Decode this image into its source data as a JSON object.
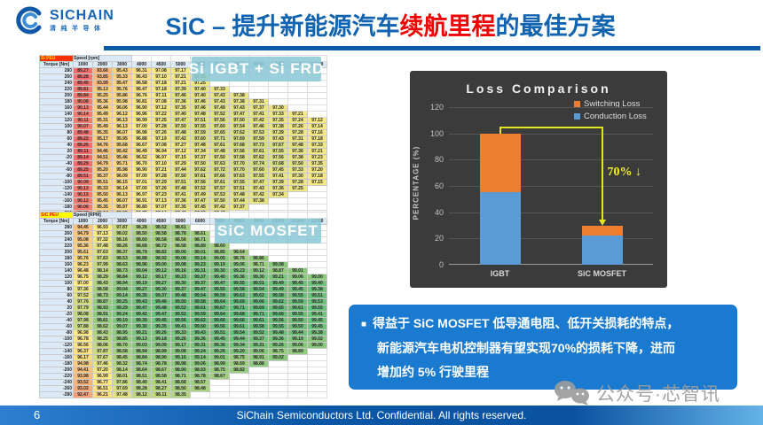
{
  "header": {
    "logo": {
      "brand": "SICHAIN",
      "brand_cn": "清纯半导体"
    },
    "title": {
      "prefix": "SiC – 提升新能源汽车",
      "highlight": "续航里程",
      "suffix": "的最佳方案"
    }
  },
  "tables": [
    {
      "corner_label": "Si PEU",
      "corner_style": "red",
      "speed_header": "Speed [rpm]",
      "torque_header": "Torque [Nm]",
      "overlay_label": "Si IGBT + Si FRD",
      "speeds": [
        "1000",
        "2000",
        "3000",
        "4000",
        "4500",
        "5000",
        "6000",
        "7000",
        "8000",
        "9000",
        "10000",
        "11000",
        "12000"
      ],
      "rows": [
        {
          "t": "280",
          "v": "89.27 93.66 95.43 96.31 97.08 97.17"
        },
        {
          "t": "260",
          "v": "89.28 93.85 95.33 96.43 97.10 97.21 97.25"
        },
        {
          "t": "240",
          "v": "89.45 93.99 95.47 96.58 97.18 97.21 97.25"
        },
        {
          "t": "220",
          "v": "89.81 95.13 95.76 96.47 97.18 97.39 97.40 97.33"
        },
        {
          "t": "200",
          "v": "89.84 95.25 95.86 96.76 97.11 97.46 97.40 97.43 97.38"
        },
        {
          "t": "180",
          "v": "90.08 95.36 95.98 96.81 97.08 97.36 97.46 97.43 97.38 97.31"
        },
        {
          "t": "160",
          "v": "90.13 95.44 96.06 96.90 97.12 97.35 97.46 97.49 97.43 97.37 97.30"
        },
        {
          "t": "140",
          "v": "90.14 95.49 96.12 96.96 97.22 97.40 97.48 97.52 97.47 97.41 97.33 97.21"
        },
        {
          "t": "120",
          "v": "90.11 95.31 96.13 96.99 97.25 97.47 97.51 97.56 97.50 97.42 97.35 97.24 97.12"
        },
        {
          "t": "100",
          "v": "90.07 95.49 96.13 97.00 97.28 97.50 97.55 97.60 97.54 97.46 97.38 97.26 97.14"
        },
        {
          "t": "80",
          "v": "89.48 95.35 96.07 96.98 97.26 97.48 97.59 97.65 97.62 97.53 97.39 97.28 97.16"
        },
        {
          "t": "60",
          "v": "89.22 95.17 95.95 96.88 97.19 97.42 97.60 97.71 97.69 97.59 97.43 97.31 97.18"
        },
        {
          "t": "40",
          "v": "89.26 94.76 95.68 96.67 97.08 97.27 97.48 97.61 97.68 97.73 97.67 97.48 97.33"
        },
        {
          "t": "20",
          "v": "89.11 94.46 95.42 96.49 96.94 97.12 97.34 97.48 97.56 97.61 97.55 97.36 97.21"
        },
        {
          "t": "-20",
          "v": "89.14 94.51 95.46 96.52 96.97 97.15 97.37 97.50 97.58 97.62 97.56 97.38 97.23"
        },
        {
          "t": "-40",
          "v": "89.29 94.79 95.71 96.70 97.10 97.29 97.50 97.63 97.70 97.74 97.68 97.50 97.35"
        },
        {
          "t": "-60",
          "v": "89.25 95.20 95.98 96.90 97.21 97.44 97.62 97.72 97.70 97.60 97.45 97.33 97.20"
        },
        {
          "t": "-80",
          "v": "89.51 95.37 96.09 97.00 97.28 97.50 97.61 97.66 97.63 97.55 97.41 97.30 97.18"
        },
        {
          "t": "-100",
          "v": "90.09 95.51 96.15 97.01 97.29 97.51 97.56 97.61 97.55 97.47 97.39 97.28 97.15"
        },
        {
          "t": "-120",
          "v": "90.13 95.33 96.14 97.00 97.26 97.48 97.52 97.57 97.51 97.43 97.36 97.25"
        },
        {
          "t": "-140",
          "v": "90.15 95.50 96.13 96.97 97.23 97.41 97.49 97.53 97.48 97.42 97.34"
        },
        {
          "t": "-160",
          "v": "90.12 95.45 96.07 96.91 97.13 97.36 97.47 97.50 97.44 97.38"
        },
        {
          "t": "-180",
          "v": "90.06 95.35 95.97 96.80 97.07 97.35 97.45 97.42 97.37"
        },
        {
          "t": "-200",
          "v": "89.82 95.24 95.85 96.75 97.10 97.45 97.39 97.42"
        },
        {
          "t": "-220",
          "v": "89.79 95.11 95.74 96.45 97.16 97.37 97.38"
        },
        {
          "t": "-240",
          "v": "89.43 93.97 95.45 96.56 97.16 97.19"
        }
      ]
    },
    {
      "corner_label": "SiC PEU",
      "corner_style": "yellow",
      "speed_header": "Speed [RPM]",
      "torque_header": "Torque [Nm]",
      "overlay_label": "SiC MOSFET",
      "speeds": [
        "1000",
        "2000",
        "3000",
        "4000",
        "4500",
        "5000",
        "6000",
        "7000",
        "8000",
        "9000",
        "10000",
        "11000",
        "12000"
      ],
      "rows": [
        {
          "t": "280",
          "v": "94.45 96.93 97.87 98.28 98.52 98.61"
        },
        {
          "t": "260",
          "v": "94.79 97.13 98.02 98.50 98.58 98.78 98.61"
        },
        {
          "t": "240",
          "v": "95.08 97.32 98.16 98.60 98.58 98.58 98.71"
        },
        {
          "t": "220",
          "v": "95.36 97.48 98.26 98.68 98.72 98.58 98.89 98.60"
        },
        {
          "t": "200",
          "v": "95.61 97.63 98.37 98.79 98.82 99.00 99.01 98.85 98.64"
        },
        {
          "t": "180",
          "v": "95.76 97.83 98.53 98.88 98.92 99.08 99.14 99.05 98.76 98.86"
        },
        {
          "t": "160",
          "v": "96.23 97.99 98.63 98.96 99.00 99.08 99.23 99.19 99.06 98.71 99.08"
        },
        {
          "t": "140",
          "v": "96.48 98.14 98.73 99.04 99.12 99.16 99.31 99.30 99.23 99.12 98.87 99.01"
        },
        {
          "t": "120",
          "v": "96.75 98.29 98.84 99.12 99.17 99.23 99.37 99.40 99.36 99.30 99.21 99.06 99.00"
        },
        {
          "t": "100",
          "v": "97.00 98.43 98.94 99.19 99.27 99.30 99.37 99.47 99.55 99.51 99.49 99.45 99.40"
        },
        {
          "t": "80",
          "v": "97.36 98.58 99.04 99.27 99.30 99.37 99.47 99.55 99.58 99.54 99.49 99.45 99.38"
        },
        {
          "t": "60",
          "v": "97.52 98.73 99.14 99.35 99.37 99.48 99.54 99.59 99.63 99.62 99.58 99.55 99.51"
        },
        {
          "t": "40",
          "v": "97.76 98.87 99.25 99.43 99.46 99.50 99.58 99.64 99.69 99.66 99.62 99.59 99.53"
        },
        {
          "t": "20",
          "v": "97.79 98.93 99.29 99.47 99.48 99.52 99.61 99.67 99.71 99.69 99.65 99.61 99.55"
        },
        {
          "t": "-20",
          "v": "98.08 98.91 99.24 99.42 99.47 99.52 99.59 99.64 99.68 99.71 99.66 99.55 99.41"
        },
        {
          "t": "-40",
          "v": "97.98 98.81 99.19 99.39 99.45 99.56 99.62 99.66 99.66 99.61 99.56 99.50 99.45"
        },
        {
          "t": "-60",
          "v": "97.88 98.62 99.07 99.30 99.35 99.41 99.50 99.56 99.61 99.58 99.55 99.50 99.45"
        },
        {
          "t": "-80",
          "v": "96.98 98.43 98.95 99.21 99.26 99.33 99.43 99.51 99.54 99.52 99.48 99.44 99.38"
        },
        {
          "t": "-100",
          "v": "96.78 98.25 98.85 99.13 99.18 99.26 99.36 99.45 99.44 99.37 99.36 99.19 99.02"
        },
        {
          "t": "-120",
          "v": "96.56 98.06 98.70 99.03 99.09 99.17 99.31 99.36 99.34 99.31 99.26 99.06 99.00"
        },
        {
          "t": "-140",
          "v": "96.37 97.87 98.58 98.94 98.99 99.08 99.24 99.26 99.20 99.06 98.75 98.89"
        },
        {
          "t": "-160",
          "v": "96.17 97.67 98.45 98.84 98.90 99.16 99.14 99.01 98.75 98.91 99.02"
        },
        {
          "t": "-180",
          "v": "94.98 97.46 98.32 98.74 98.78 98.98 99.06 98.99 98.69 98.88"
        },
        {
          "t": "-200",
          "v": "94.41 97.20 98.14 98.64 98.67 98.90 98.93 98.75 98.82"
        },
        {
          "t": "-220",
          "v": "93.98 96.99 98.01 98.51 98.58 98.71 98.78 98.67"
        },
        {
          "t": "-240",
          "v": "93.52 96.77 97.86 98.40 98.41 98.68 98.57"
        },
        {
          "t": "-260",
          "v": "93.02 96.51 97.69 98.28 98.27 98.50 98.48"
        },
        {
          "t": "-280",
          "v": "92.47 96.21 97.48 98.12 98.11 98.35"
        }
      ]
    }
  ],
  "chart_data": {
    "type": "bar",
    "stacked": true,
    "title": "Loss Comparison",
    "categories": [
      "IGBT",
      "SiC MOSFET"
    ],
    "series": [
      {
        "name": "Conduction Loss",
        "color": "#5b9bd5",
        "values": [
          55,
          22
        ]
      },
      {
        "name": "Switching Loss",
        "color": "#ed7d31",
        "values": [
          45,
          8
        ]
      }
    ],
    "legend_order": [
      "Switching Loss",
      "Conduction Loss"
    ],
    "legend_position": "top-right",
    "ylabel": "PERCENTAGE (%)",
    "xlabel": "",
    "ylim": [
      0,
      120
    ],
    "yticks": [
      0,
      20,
      40,
      60,
      80,
      100,
      120
    ],
    "grid": true,
    "annotation": "70% ↓",
    "background": "#3b3b3b"
  },
  "callout": {
    "bullet": "■",
    "line1": "得益于 SiC MOSFET 低导通电阻、低开关损耗的特点，",
    "line2": "新能源汽车电机控制器有望实现70%的损耗下降，进而",
    "line3": "增加约 5% 行驶里程"
  },
  "watermark": {
    "text": "公众号·芯智讯"
  },
  "footer": {
    "page_number": "6",
    "text": "SiChain Semiconductors Ltd. Confidential. All rights reserved."
  }
}
